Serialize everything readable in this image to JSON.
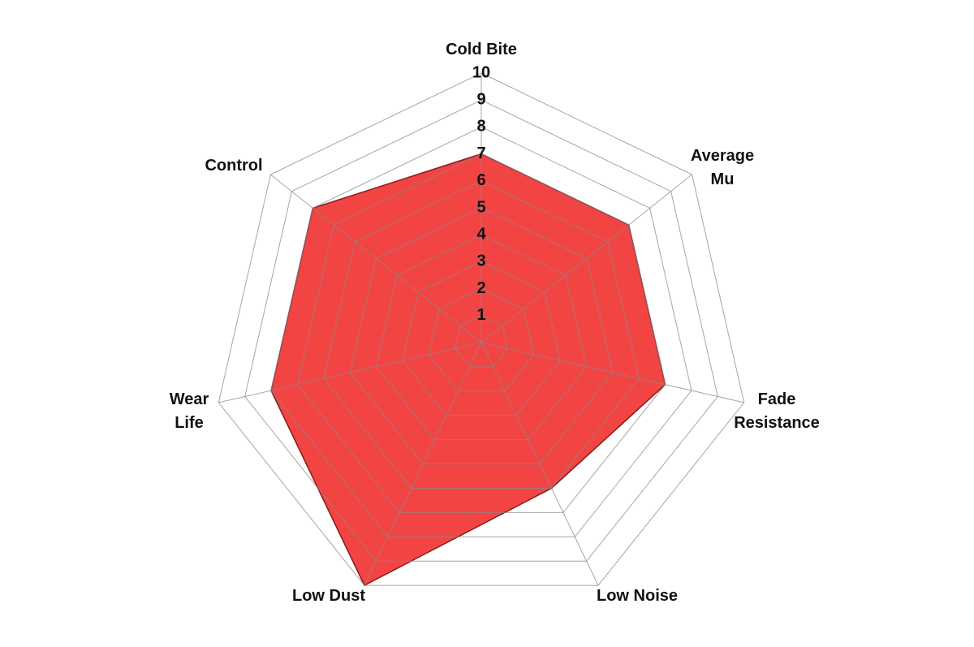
{
  "chart_data": {
    "type": "radar",
    "categories": [
      [
        "Cold Bite"
      ],
      [
        "Average",
        "Mu"
      ],
      [
        "Fade",
        "Resistance"
      ],
      [
        "Low Noise"
      ],
      [
        "Low Dust"
      ],
      [
        "Wear",
        "Life"
      ],
      [
        "Control"
      ]
    ],
    "values": [
      7,
      7,
      7,
      6,
      10,
      8,
      8
    ],
    "color": "#f23a3a",
    "rlim": [
      0,
      10
    ],
    "rticks": [
      1,
      2,
      3,
      4,
      5,
      6,
      7,
      8,
      9,
      10
    ],
    "grid": true
  }
}
